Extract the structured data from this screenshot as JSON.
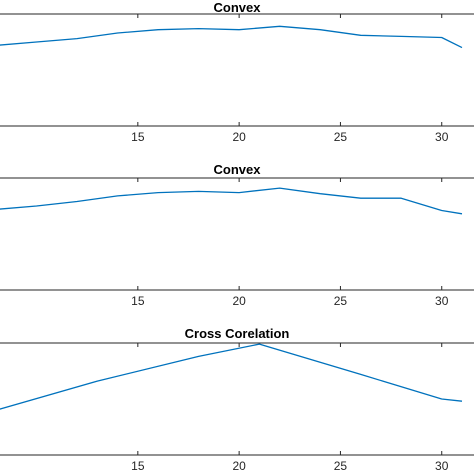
{
  "chart_data": [
    {
      "type": "line",
      "title": "Convex",
      "xlim": [
        8,
        31
      ],
      "ylim": [
        0,
        1
      ],
      "xticks": [
        15,
        20,
        25,
        30
      ],
      "grid": false,
      "series": [
        {
          "color": "#0072BD",
          "x": [
            8,
            10,
            12,
            14,
            16,
            18,
            20,
            22,
            24,
            26,
            28,
            30,
            31
          ],
          "y": [
            0.72,
            0.75,
            0.78,
            0.83,
            0.86,
            0.87,
            0.86,
            0.89,
            0.86,
            0.81,
            0.8,
            0.79,
            0.7
          ]
        }
      ]
    },
    {
      "type": "line",
      "title": "Convex",
      "xlim": [
        8,
        31
      ],
      "ylim": [
        0,
        1
      ],
      "xticks": [
        15,
        20,
        25,
        30
      ],
      "grid": false,
      "series": [
        {
          "color": "#0072BD",
          "x": [
            8,
            10,
            12,
            14,
            16,
            18,
            20,
            22,
            24,
            26,
            28,
            30,
            31
          ],
          "y": [
            0.72,
            0.75,
            0.79,
            0.84,
            0.87,
            0.88,
            0.87,
            0.91,
            0.86,
            0.82,
            0.82,
            0.71,
            0.68
          ]
        }
      ]
    },
    {
      "type": "line",
      "title": "Cross Corelation",
      "xlim": [
        8,
        31
      ],
      "ylim": [
        0,
        1
      ],
      "xticks": [
        15,
        20,
        25,
        30
      ],
      "grid": false,
      "series": [
        {
          "color": "#0072BD",
          "x": [
            8,
            13,
            18,
            21,
            26,
            30,
            31
          ],
          "y": [
            0.4,
            0.66,
            0.88,
            0.99,
            0.72,
            0.5,
            0.48
          ]
        }
      ]
    }
  ]
}
